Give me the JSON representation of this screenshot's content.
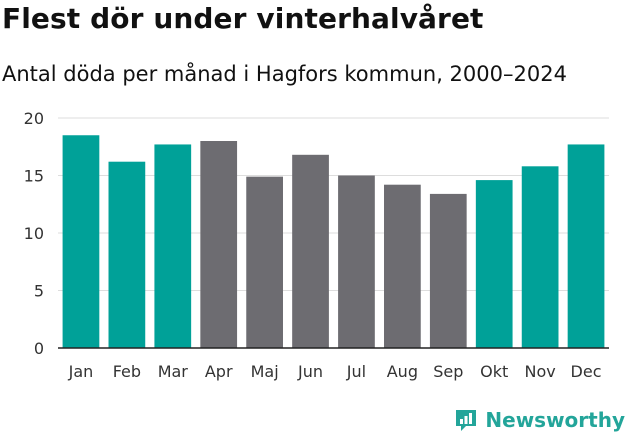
{
  "title": "Flest dör under vinterhalvåret",
  "subtitle": "Antal döda per månad i Hagfors kommun, 2000–2024",
  "brand": {
    "name": "Newsworthy",
    "icon": "newsworthy-logo-icon"
  },
  "colors": {
    "highlight": "#00a198",
    "base": "#6d6c71",
    "grid": "#dddddd",
    "axis": "#222222"
  },
  "chart_data": {
    "type": "bar",
    "title": "Flest dör under vinterhalvåret",
    "subtitle": "Antal döda per månad i Hagfors kommun, 2000–2024",
    "xlabel": "",
    "ylabel": "",
    "ylim": [
      0,
      20
    ],
    "yticks": [
      0,
      5,
      10,
      15,
      20
    ],
    "grid": true,
    "categories": [
      "Jan",
      "Feb",
      "Mar",
      "Apr",
      "Maj",
      "Jun",
      "Jul",
      "Aug",
      "Sep",
      "Okt",
      "Nov",
      "Dec"
    ],
    "values": [
      18.5,
      16.2,
      17.7,
      18.0,
      14.9,
      16.8,
      15.0,
      14.2,
      13.4,
      14.6,
      15.8,
      17.7
    ],
    "highlighted": [
      true,
      true,
      true,
      false,
      false,
      false,
      false,
      false,
      false,
      true,
      true,
      true
    ]
  }
}
